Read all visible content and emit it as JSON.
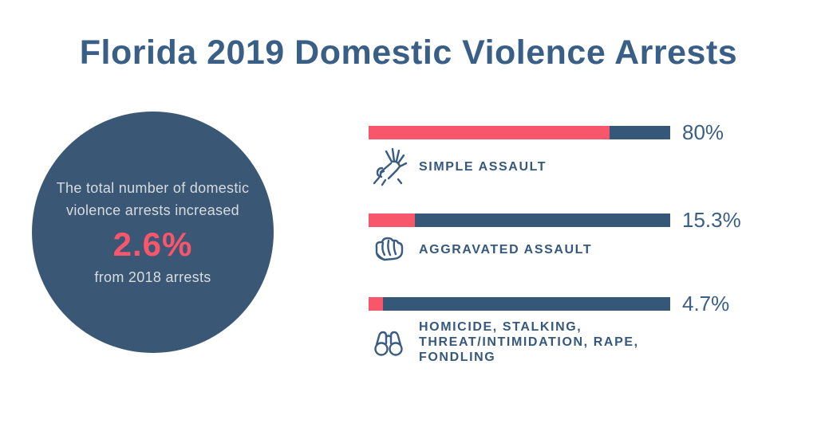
{
  "title": "Florida 2019 Domestic Violence Arrests",
  "colors": {
    "bar_track_navy": "#355878",
    "circle_navy": "#3A5876",
    "accent_pink": "#F8566B",
    "heading_blue": "#3A5F87",
    "circle_text_gray": "#D8DBDD"
  },
  "circle": {
    "text_lines": [
      "The total number of domestic",
      "violence arrests increased"
    ],
    "highlight": "2.6%",
    "footnote": "from 2018 arrests"
  },
  "chart_data": {
    "type": "bar",
    "orientation": "horizontal",
    "title": "Florida 2019 Domestic Violence Arrests",
    "categories": [
      "Simple Assault",
      "Aggravated Assault",
      "Homicide, Stalking, Threat/Intimidation, Rape, Fondling"
    ],
    "values": [
      80,
      15.3,
      4.7
    ],
    "value_labels": [
      "80%",
      "15.3%",
      "4.7%"
    ],
    "xlim": [
      0,
      100
    ],
    "bar_fill_color": "#F8566B",
    "bar_track_color": "#355878",
    "legend": "off",
    "grid": "off",
    "annotation": "The total number of domestic violence arrests increased 2.6% from 2018 arrests"
  },
  "bars": [
    {
      "display_label": "SIMPLE ASSAULT",
      "icon": "hand-grab-icon"
    },
    {
      "display_label": "AGGRAVATED ASSAULT",
      "icon": "fist-icon"
    },
    {
      "display_label": "HOMICIDE, STALKING,\nTHREAT/INTIMIDATION, RAPE,\nFONDLING",
      "icon": "binoculars-icon"
    }
  ]
}
